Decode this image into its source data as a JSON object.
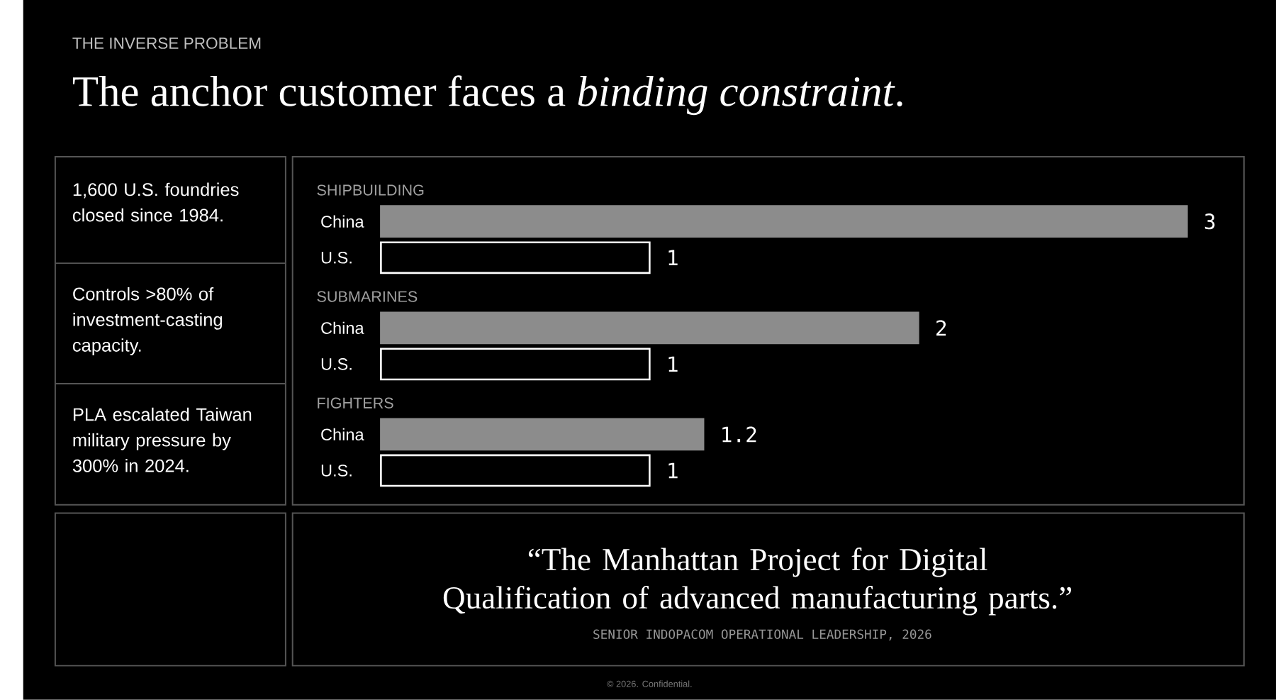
{
  "chart_data": {
    "type": "bar",
    "orientation": "horizontal",
    "subtitle": "THE INVERSE PROBLEM",
    "title": "The anchor customer faces a *binding constraint*.",
    "categories": [
      "China",
      "U.S.",
      "China",
      "U.S.",
      "China",
      "U.S."
    ],
    "values": [
      3,
      1,
      2,
      1,
      1.2,
      1
    ],
    "colors": [
      "#8c8c8c",
      "#000000",
      "#8c8c8c",
      "#000000",
      "#8c8c8c",
      "#000000"
    ],
    "data_labels": true,
    "annotations": [
      "1,600 U.S. foundries closed since 1984.",
      "Controls >80% of investment-casting capacity.",
      "PLA escalated Taiwan military pressure by 300% in 2024.",
      "SHIPBUILDING",
      "SUBMARINES",
      "FIGHTERS",
      "“The Manhattan Project for Digital Qualification of advanced manufacturing parts.”",
      "SENIOR INDOPACOM OPERATIONAL LEADERSHIP, 2026",
      "© 2026. Confidential."
    ]
  }
}
